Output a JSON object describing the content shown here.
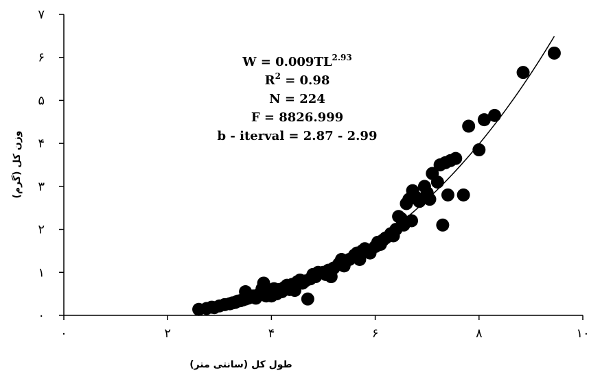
{
  "chart_data": {
    "type": "scatter",
    "xlabel": "طول کل (سانتی متر)",
    "ylabel": "وزن کل (گرم)",
    "xlim": [
      0,
      10
    ],
    "ylim": [
      0,
      7
    ],
    "x_ticks": [
      0,
      2,
      4,
      6,
      8,
      10
    ],
    "y_ticks": [
      0,
      1,
      2,
      3,
      4,
      5,
      6,
      7
    ],
    "x_tick_labels": [
      "۰",
      "۲",
      "۴",
      "۶",
      "۸",
      "۱۰"
    ],
    "y_tick_labels": [
      "۰",
      "۱",
      "۲",
      "۳",
      "۴",
      "۵",
      "۶",
      "۷"
    ],
    "grid": false,
    "annotation_lines": [
      {
        "text": "W = 0.009TL",
        "sup": "2.93"
      },
      {
        "text": "R",
        "sup": "2",
        "tail": " = 0.98"
      },
      {
        "text": "N = 224"
      },
      {
        "text": "F = 8826.999"
      },
      {
        "text": "b - iterval = 2.87 - 2.99"
      }
    ],
    "trendline": {
      "a": 0.009,
      "b": 2.93,
      "x_range": [
        2.6,
        9.45
      ]
    },
    "points": [
      [
        2.6,
        0.14
      ],
      [
        2.75,
        0.16
      ],
      [
        2.85,
        0.19
      ],
      [
        2.9,
        0.18
      ],
      [
        3.0,
        0.22
      ],
      [
        3.1,
        0.25
      ],
      [
        3.2,
        0.27
      ],
      [
        3.25,
        0.29
      ],
      [
        3.3,
        0.3
      ],
      [
        3.35,
        0.33
      ],
      [
        3.4,
        0.34
      ],
      [
        3.45,
        0.36
      ],
      [
        3.5,
        0.38
      ],
      [
        3.5,
        0.55
      ],
      [
        3.55,
        0.4
      ],
      [
        3.6,
        0.42
      ],
      [
        3.65,
        0.45
      ],
      [
        3.7,
        0.4
      ],
      [
        3.75,
        0.48
      ],
      [
        3.8,
        0.5
      ],
      [
        3.82,
        0.62
      ],
      [
        3.85,
        0.75
      ],
      [
        3.9,
        0.45
      ],
      [
        3.95,
        0.55
      ],
      [
        4.0,
        0.58
      ],
      [
        4.0,
        0.45
      ],
      [
        4.05,
        0.62
      ],
      [
        4.1,
        0.5
      ],
      [
        4.15,
        0.6
      ],
      [
        4.2,
        0.55
      ],
      [
        4.25,
        0.65
      ],
      [
        4.3,
        0.7
      ],
      [
        4.35,
        0.6
      ],
      [
        4.4,
        0.72
      ],
      [
        4.45,
        0.58
      ],
      [
        4.5,
        0.78
      ],
      [
        4.55,
        0.82
      ],
      [
        4.6,
        0.75
      ],
      [
        4.65,
        0.8
      ],
      [
        4.7,
        0.38
      ],
      [
        4.75,
        0.85
      ],
      [
        4.8,
        0.95
      ],
      [
        4.85,
        0.9
      ],
      [
        4.9,
        1.0
      ],
      [
        5.0,
        1.0
      ],
      [
        5.05,
        0.95
      ],
      [
        5.1,
        1.05
      ],
      [
        5.15,
        0.9
      ],
      [
        5.2,
        1.1
      ],
      [
        5.3,
        1.2
      ],
      [
        5.35,
        1.3
      ],
      [
        5.4,
        1.15
      ],
      [
        5.5,
        1.3
      ],
      [
        5.6,
        1.4
      ],
      [
        5.65,
        1.45
      ],
      [
        5.7,
        1.3
      ],
      [
        5.75,
        1.5
      ],
      [
        5.8,
        1.55
      ],
      [
        5.9,
        1.45
      ],
      [
        6.0,
        1.6
      ],
      [
        6.05,
        1.7
      ],
      [
        6.1,
        1.65
      ],
      [
        6.15,
        1.75
      ],
      [
        6.2,
        1.8
      ],
      [
        6.3,
        1.9
      ],
      [
        6.35,
        1.85
      ],
      [
        6.4,
        2.0
      ],
      [
        6.45,
        2.3
      ],
      [
        6.5,
        2.25
      ],
      [
        6.55,
        2.1
      ],
      [
        6.6,
        2.6
      ],
      [
        6.65,
        2.7
      ],
      [
        6.7,
        2.2
      ],
      [
        6.72,
        2.9
      ],
      [
        6.78,
        2.75
      ],
      [
        6.85,
        2.65
      ],
      [
        6.95,
        3.0
      ],
      [
        7.0,
        2.85
      ],
      [
        7.05,
        2.7
      ],
      [
        7.1,
        3.3
      ],
      [
        7.2,
        3.1
      ],
      [
        7.25,
        3.5
      ],
      [
        7.3,
        2.1
      ],
      [
        7.35,
        3.55
      ],
      [
        7.4,
        2.8
      ],
      [
        7.45,
        3.6
      ],
      [
        7.55,
        3.65
      ],
      [
        7.7,
        2.8
      ],
      [
        7.8,
        4.4
      ],
      [
        8.0,
        3.85
      ],
      [
        8.1,
        4.55
      ],
      [
        8.3,
        4.65
      ],
      [
        8.85,
        5.65
      ],
      [
        9.45,
        6.1
      ]
    ]
  }
}
